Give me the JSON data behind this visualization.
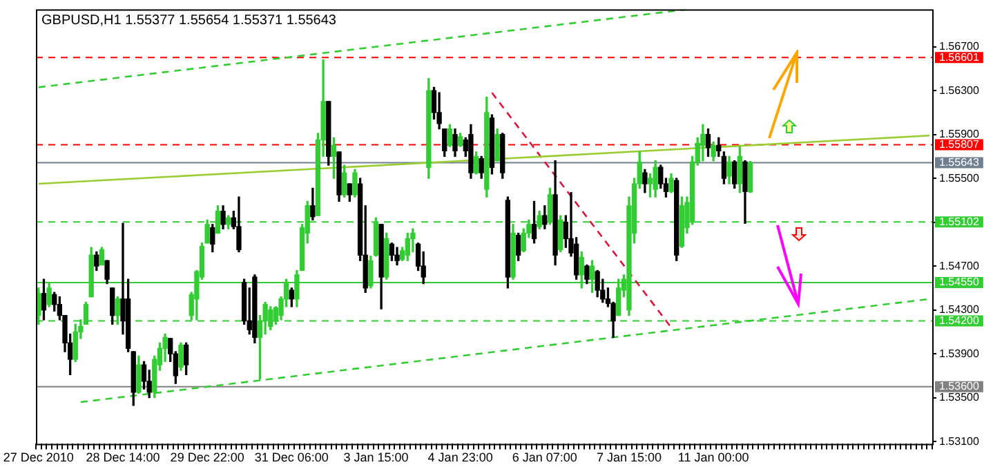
{
  "chart_data": {
    "type": "candlestick",
    "title": "GBPUSD,H1 1.55377 1.55654 1.55371 1.55643",
    "categories": [
      "27 Dec 2010",
      null,
      null,
      null,
      null,
      null,
      null,
      null,
      null,
      null,
      null,
      null,
      null,
      null,
      null,
      null,
      "28 Dec 14:00",
      null,
      null,
      null,
      null,
      null,
      null,
      null,
      null,
      null,
      null,
      null,
      null,
      null,
      null,
      null,
      "29 Dec 22:00",
      null,
      null,
      null,
      null,
      null,
      null,
      null,
      null,
      null,
      null,
      null,
      null,
      null,
      null,
      null,
      "31 Dec 06:00",
      null,
      null,
      null,
      null,
      null,
      null,
      null,
      null,
      null,
      null,
      null,
      null,
      null,
      null,
      null,
      "3 Jan 15:00",
      null,
      null,
      null,
      null,
      null,
      null,
      null,
      null,
      null,
      null,
      null,
      null,
      null,
      null,
      null,
      "4 Jan 23:00",
      null,
      null,
      null,
      null,
      null,
      null,
      null,
      null,
      null,
      null,
      null,
      null,
      null,
      null,
      null,
      "6 Jan 07:00",
      null,
      null,
      null,
      null,
      null,
      null,
      null,
      null,
      null,
      null,
      null,
      null,
      null,
      null,
      null,
      "7 Jan 15:00",
      null,
      null,
      null,
      null,
      null,
      null,
      null,
      null,
      null,
      null,
      null,
      null,
      null,
      null,
      null,
      "11 Jan 00:00",
      null,
      null,
      null,
      null,
      null,
      null,
      null,
      null,
      null,
      null,
      null,
      null,
      null,
      null,
      null,
      null,
      null,
      null,
      null,
      null,
      null,
      null,
      null,
      null,
      null,
      null,
      null,
      null,
      null,
      null,
      null,
      null,
      null,
      null,
      null,
      null,
      null,
      null,
      null,
      null,
      null
    ],
    "ohlc": [
      [
        1.5425,
        1.545,
        1.5417,
        1.5445
      ],
      [
        1.5445,
        1.5458,
        1.5421,
        1.543
      ],
      [
        1.5435,
        1.5454,
        1.5433,
        1.545
      ],
      [
        1.5444,
        1.5446,
        1.5429,
        1.5435
      ],
      [
        1.5435,
        1.5442,
        1.5421,
        1.5425
      ],
      [
        1.5425,
        1.5425,
        1.5392,
        1.54
      ],
      [
        1.54,
        1.5408,
        1.5371,
        1.5385
      ],
      [
        1.5385,
        1.5417,
        1.5383,
        1.541
      ],
      [
        1.541,
        1.5421,
        1.5404,
        1.5415
      ],
      [
        1.5417,
        1.5437,
        1.5417,
        1.5435
      ],
      [
        1.5442,
        1.5487,
        1.5442,
        1.548
      ],
      [
        1.548,
        1.5483,
        1.5466,
        1.547
      ],
      [
        1.5471,
        1.5487,
        1.5471,
        1.5485
      ],
      [
        1.5475,
        1.5475,
        1.5454,
        1.5458
      ],
      [
        1.545,
        1.545,
        1.5417,
        1.5425
      ],
      [
        1.5425,
        1.5442,
        1.5417,
        1.544
      ],
      [
        1.544,
        1.5509,
        1.5408,
        1.542
      ],
      [
        1.544,
        1.5458,
        1.5392,
        1.5395
      ],
      [
        1.5392,
        1.5392,
        1.5343,
        1.5355
      ],
      [
        1.5355,
        1.5388,
        1.5354,
        1.538
      ],
      [
        1.538,
        1.5383,
        1.5358,
        1.5365
      ],
      [
        1.5365,
        1.5375,
        1.535,
        1.5355
      ],
      [
        1.5355,
        1.5388,
        1.535,
        1.5385
      ],
      [
        1.538,
        1.54,
        1.5375,
        1.5395
      ],
      [
        1.5395,
        1.5408,
        1.5383,
        1.5405
      ],
      [
        1.5404,
        1.5404,
        1.5383,
        1.539
      ],
      [
        1.539,
        1.5392,
        1.5363,
        1.537
      ],
      [
        1.5378,
        1.54,
        1.5375,
        1.5398
      ],
      [
        1.5398,
        1.54,
        1.5371,
        1.538
      ],
      [
        1.5425,
        1.5446,
        1.5421,
        1.5444
      ],
      [
        1.544,
        1.5466,
        1.5421,
        1.5465
      ],
      [
        1.546,
        1.5491,
        1.5458,
        1.5488
      ],
      [
        1.5491,
        1.5512,
        1.5491,
        1.5508
      ],
      [
        1.5505,
        1.5508,
        1.5483,
        1.549
      ],
      [
        1.55,
        1.5525,
        1.55,
        1.552
      ],
      [
        1.552,
        1.5525,
        1.5504,
        1.5508
      ],
      [
        1.5508,
        1.5516,
        1.5504,
        1.5514
      ],
      [
        1.5514,
        1.552,
        1.5504,
        1.5506
      ],
      [
        1.5506,
        1.5533,
        1.5483,
        1.5485
      ],
      [
        1.5455,
        1.5458,
        1.5417,
        1.542
      ],
      [
        1.542,
        1.545,
        1.5408,
        1.5412
      ],
      [
        1.546,
        1.5462,
        1.54,
        1.5405
      ],
      [
        1.5405,
        1.5425,
        1.5367,
        1.542
      ],
      [
        1.542,
        1.5437,
        1.5408,
        1.5435
      ],
      [
        1.5415,
        1.5433,
        1.5412,
        1.543
      ],
      [
        1.542,
        1.5433,
        1.5417,
        1.5432
      ],
      [
        1.5425,
        1.5442,
        1.5421,
        1.544
      ],
      [
        1.544,
        1.5458,
        1.5433,
        1.5455
      ],
      [
        1.5448,
        1.545,
        1.5433,
        1.544
      ],
      [
        1.544,
        1.5466,
        1.5433,
        1.5462
      ],
      [
        1.5466,
        1.5508,
        1.5466,
        1.5505
      ],
      [
        1.55,
        1.5529,
        1.5491,
        1.5525
      ],
      [
        1.5525,
        1.5541,
        1.5512,
        1.5515
      ],
      [
        1.5516,
        1.5591,
        1.5516,
        1.5585
      ],
      [
        1.5585,
        1.5658,
        1.557,
        1.562
      ],
      [
        1.562,
        1.562,
        1.5562,
        1.557
      ],
      [
        1.557,
        1.5587,
        1.555,
        1.558
      ],
      [
        1.5574,
        1.5574,
        1.5529,
        1.5535
      ],
      [
        1.5535,
        1.5562,
        1.5533,
        1.5555
      ],
      [
        1.5545,
        1.5545,
        1.5529,
        1.5535
      ],
      [
        1.5535,
        1.5558,
        1.5533,
        1.5555
      ],
      [
        1.5545,
        1.555,
        1.5475,
        1.548
      ],
      [
        1.548,
        1.5525,
        1.5446,
        1.545
      ],
      [
        1.5452,
        1.5479,
        1.545,
        1.5475
      ],
      [
        1.548,
        1.5514,
        1.5479,
        1.551
      ],
      [
        1.5508,
        1.5508,
        1.5431,
        1.546
      ],
      [
        1.546,
        1.55,
        1.5458,
        1.5495
      ],
      [
        1.549,
        1.5491,
        1.5475,
        1.548
      ],
      [
        1.548,
        1.5487,
        1.5471,
        1.5475
      ],
      [
        1.5476,
        1.5487,
        1.5475,
        1.5484
      ],
      [
        1.548,
        1.55,
        1.5475,
        1.5495
      ],
      [
        1.5495,
        1.5504,
        1.5483,
        1.55
      ],
      [
        1.549,
        1.5491,
        1.5466,
        1.547
      ],
      [
        1.547,
        1.5483,
        1.5454,
        1.546
      ],
      [
        1.556,
        1.5641,
        1.555,
        1.563
      ],
      [
        1.563,
        1.5633,
        1.5604,
        1.561
      ],
      [
        1.561,
        1.5628,
        1.5595,
        1.56
      ],
      [
        1.5595,
        1.5595,
        1.557,
        1.5575
      ],
      [
        1.558,
        1.5599,
        1.5579,
        1.5595
      ],
      [
        1.559,
        1.5595,
        1.557,
        1.5575
      ],
      [
        1.558,
        1.5591,
        1.5579,
        1.5588
      ],
      [
        1.5585,
        1.5587,
        1.557,
        1.5575
      ],
      [
        1.559,
        1.5599,
        1.555,
        1.5555
      ],
      [
        1.5555,
        1.5574,
        1.5554,
        1.557
      ],
      [
        1.5568,
        1.557,
        1.555,
        1.5555
      ],
      [
        1.554,
        1.5624,
        1.5533,
        1.561
      ],
      [
        1.5605,
        1.5608,
        1.5554,
        1.556
      ],
      [
        1.5566,
        1.5595,
        1.5566,
        1.559
      ],
      [
        1.559,
        1.5591,
        1.555,
        1.5555
      ],
      [
        1.553,
        1.5533,
        1.545,
        1.546
      ],
      [
        1.546,
        1.5508,
        1.5458,
        1.55
      ],
      [
        1.5498,
        1.55,
        1.5475,
        1.548
      ],
      [
        1.5484,
        1.5504,
        1.5483,
        1.55
      ],
      [
        1.55,
        1.5512,
        1.5496,
        1.5508
      ],
      [
        1.5508,
        1.5529,
        1.5491,
        1.5495
      ],
      [
        1.5506,
        1.552,
        1.5504,
        1.5516
      ],
      [
        1.5516,
        1.5525,
        1.5504,
        1.5508
      ],
      [
        1.551,
        1.5541,
        1.5508,
        1.5535
      ],
      [
        1.5535,
        1.5566,
        1.5471,
        1.548
      ],
      [
        1.5485,
        1.5516,
        1.5483,
        1.5512
      ],
      [
        1.551,
        1.5516,
        1.5487,
        1.5495
      ],
      [
        1.5495,
        1.5537,
        1.5479,
        1.5482
      ],
      [
        1.549,
        1.5496,
        1.5458,
        1.5462
      ],
      [
        1.5462,
        1.5483,
        1.545,
        1.5478
      ],
      [
        1.547,
        1.5471,
        1.5454,
        1.5458
      ],
      [
        1.5458,
        1.5475,
        1.5446,
        1.547
      ],
      [
        1.5465,
        1.5466,
        1.5442,
        1.5448
      ],
      [
        1.5448,
        1.5458,
        1.5437,
        1.544
      ],
      [
        1.544,
        1.545,
        1.5433,
        1.5436
      ],
      [
        1.5436,
        1.5437,
        1.5405,
        1.542
      ],
      [
        1.5425,
        1.5458,
        1.5425,
        1.545
      ],
      [
        1.5448,
        1.5462,
        1.5442,
        1.5458
      ],
      [
        1.543,
        1.5533,
        1.5425,
        1.5525
      ],
      [
        1.55,
        1.555,
        1.5491,
        1.5545
      ],
      [
        1.5545,
        1.5574,
        1.5541,
        1.5565
      ],
      [
        1.5555,
        1.5558,
        1.5537,
        1.5545
      ],
      [
        1.5545,
        1.5554,
        1.5533,
        1.555
      ],
      [
        1.554,
        1.5566,
        1.5533,
        1.556
      ],
      [
        1.556,
        1.5562,
        1.5541,
        1.5545
      ],
      [
        1.5545,
        1.555,
        1.5533,
        1.5538
      ],
      [
        1.5538,
        1.5554,
        1.5537,
        1.555
      ],
      [
        1.5548,
        1.555,
        1.5475,
        1.548
      ],
      [
        1.5488,
        1.5533,
        1.5487,
        1.5525
      ],
      [
        1.5505,
        1.5533,
        1.55,
        1.5528
      ],
      [
        1.551,
        1.557,
        1.5508,
        1.5565
      ],
      [
        1.5565,
        1.5587,
        1.5562,
        1.5582
      ],
      [
        1.558,
        1.5599,
        1.5566,
        1.559
      ],
      [
        1.559,
        1.5595,
        1.557,
        1.5578
      ],
      [
        1.557,
        1.5583,
        1.5566,
        1.558
      ],
      [
        1.558,
        1.5587,
        1.557,
        1.5575
      ],
      [
        1.557,
        1.5574,
        1.5545,
        1.555
      ],
      [
        1.5552,
        1.557,
        1.5545,
        1.5565
      ],
      [
        1.5565,
        1.5566,
        1.5541,
        1.5545
      ],
      [
        1.5545,
        1.5579,
        1.5537,
        1.557
      ],
      [
        1.5565,
        1.5566,
        1.5509,
        1.5538
      ],
      [
        1.55377,
        1.55654,
        1.55371,
        1.55643
      ],
      null,
      null,
      null,
      null,
      null,
      null,
      null,
      null,
      null,
      null,
      null,
      null,
      null,
      null,
      null,
      null,
      null,
      null,
      null,
      null,
      null,
      null,
      null,
      null,
      null,
      null,
      null,
      null,
      null,
      null,
      null,
      null,
      null,
      null
    ],
    "ylim": [
      1.5308,
      1.5704
    ],
    "yticks": [
      {
        "value": 1.567,
        "label": "1.56700"
      },
      {
        "value": 1.563,
        "label": "1.56300"
      },
      {
        "value": 1.559,
        "label": "1.55900"
      },
      {
        "value": 1.555,
        "label": "1.55500"
      },
      {
        "value": 1.551,
        "label": null
      },
      {
        "value": 1.547,
        "label": "1.54700"
      },
      {
        "value": 1.543,
        "label": "1.54300"
      },
      {
        "value": 1.539,
        "label": "1.53900"
      },
      {
        "value": 1.535,
        "label": "1.53500"
      },
      {
        "value": 1.531,
        "label": "1.53100"
      }
    ],
    "ref_lines": [
      {
        "axis": "y",
        "value": 1.56601,
        "label": "1.56601",
        "color": "#ff0000",
        "line_style": "dashed"
      },
      {
        "axis": "y",
        "value": 1.55807,
        "label": "1.55807",
        "color": "#ff0000",
        "line_style": "dashed"
      },
      {
        "axis": "y",
        "value": 1.55643,
        "label": "1.55643",
        "color": "#708090",
        "line_style": "solid"
      },
      {
        "axis": "y",
        "value": 1.55102,
        "label": "1.55102",
        "color": "#32cd32",
        "line_style": "dashed"
      },
      {
        "axis": "y",
        "value": 1.5455,
        "label": "1.54550",
        "color": "#32cd32",
        "line_style": "solid"
      },
      {
        "axis": "y",
        "value": 1.542,
        "label": "1.54200",
        "color": "#32cd32",
        "line_style": "dashed"
      },
      {
        "axis": "y",
        "value": 1.536,
        "label": "1.53600",
        "color": "#808080",
        "line_style": "solid"
      }
    ],
    "series": [
      {
        "type": "line",
        "color": "#32cd32",
        "line_style": "dashed",
        "values": [
          1.5633,
          null,
          null,
          null,
          null,
          null,
          null,
          null,
          null,
          null,
          null,
          null,
          null,
          null,
          null,
          null,
          null,
          null,
          null,
          null,
          null,
          null,
          null,
          null,
          null,
          null,
          null,
          null,
          null,
          null,
          null,
          null,
          null,
          null,
          null,
          null,
          null,
          null,
          null,
          null,
          null,
          null,
          null,
          null,
          null,
          null,
          null,
          null,
          null,
          null,
          null,
          null,
          null,
          null,
          null,
          null,
          null,
          null,
          null,
          null,
          null,
          null,
          null,
          null,
          null,
          null,
          null,
          null,
          null,
          null,
          null,
          null,
          null,
          null,
          null,
          null,
          null,
          null,
          null,
          null,
          null,
          null,
          null,
          null,
          null,
          null,
          null,
          null,
          null,
          null,
          null,
          null,
          null,
          null,
          null,
          null,
          null,
          null,
          null,
          null,
          null,
          null,
          null,
          null,
          null,
          null,
          null,
          null,
          null,
          null,
          null,
          null,
          null,
          null,
          null,
          null,
          null,
          null,
          null,
          null,
          null,
          null,
          null,
          1.5704,
          null,
          null,
          null,
          null,
          null,
          null,
          null,
          null,
          null,
          null,
          null,
          null,
          null,
          null,
          null,
          null,
          null,
          null,
          null,
          null,
          null,
          null,
          null,
          null,
          null,
          null,
          null,
          null,
          null,
          null,
          null,
          null,
          null,
          null,
          null,
          null,
          null,
          null,
          null,
          null,
          null,
          null,
          null,
          null,
          null,
          null
        ]
      },
      {
        "type": "line",
        "color": "#32cd32",
        "line_style": "dashed",
        "values": [
          null,
          null,
          null,
          null,
          null,
          null,
          null,
          null,
          1.5346,
          null,
          null,
          null,
          null,
          null,
          null,
          null,
          null,
          null,
          null,
          null,
          null,
          null,
          null,
          null,
          null,
          null,
          null,
          null,
          null,
          null,
          null,
          null,
          null,
          null,
          null,
          null,
          null,
          null,
          null,
          null,
          null,
          null,
          null,
          null,
          null,
          null,
          null,
          null,
          null,
          null,
          null,
          null,
          null,
          null,
          null,
          null,
          null,
          null,
          null,
          null,
          null,
          null,
          null,
          null,
          null,
          null,
          null,
          null,
          null,
          null,
          null,
          null,
          null,
          null,
          null,
          null,
          null,
          null,
          null,
          null,
          null,
          null,
          null,
          null,
          null,
          null,
          null,
          null,
          null,
          null,
          null,
          null,
          null,
          null,
          null,
          null,
          null,
          null,
          null,
          null,
          null,
          null,
          null,
          null,
          null,
          null,
          null,
          null,
          null,
          null,
          null,
          null,
          null,
          null,
          null,
          null,
          null,
          null,
          null,
          null,
          null,
          null,
          null,
          null,
          null,
          null,
          null,
          null,
          null,
          null,
          null,
          null,
          null,
          null,
          null,
          null,
          null,
          null,
          null,
          null,
          null,
          null,
          null,
          null,
          null,
          null,
          null,
          null,
          null,
          null,
          null,
          null,
          null,
          null,
          null,
          null,
          null,
          null,
          null,
          null,
          null,
          null,
          null,
          null,
          null,
          null,
          null,
          null,
          null,
          1.544
        ]
      },
      {
        "type": "line",
        "color": "#9acd32",
        "line_style": "solid",
        "values": [
          1.5545,
          null,
          null,
          null,
          null,
          null,
          null,
          null,
          null,
          null,
          null,
          null,
          null,
          null,
          null,
          null,
          null,
          null,
          null,
          null,
          null,
          null,
          null,
          null,
          null,
          null,
          null,
          null,
          null,
          null,
          null,
          null,
          null,
          null,
          null,
          null,
          null,
          null,
          null,
          null,
          null,
          null,
          null,
          null,
          null,
          null,
          null,
          null,
          null,
          null,
          null,
          null,
          null,
          null,
          null,
          null,
          null,
          null,
          null,
          null,
          null,
          null,
          null,
          null,
          null,
          null,
          null,
          null,
          null,
          null,
          null,
          null,
          null,
          null,
          null,
          null,
          null,
          null,
          null,
          null,
          null,
          null,
          null,
          null,
          null,
          null,
          null,
          null,
          null,
          null,
          null,
          null,
          null,
          null,
          null,
          null,
          null,
          null,
          null,
          null,
          null,
          null,
          null,
          null,
          null,
          null,
          null,
          null,
          null,
          null,
          null,
          null,
          null,
          null,
          null,
          null,
          null,
          null,
          null,
          null,
          null,
          null,
          null,
          null,
          null,
          null,
          null,
          null,
          null,
          null,
          null,
          null,
          null,
          null,
          null,
          null,
          null,
          null,
          null,
          null,
          null,
          null,
          null,
          null,
          null,
          null,
          null,
          null,
          null,
          null,
          null,
          null,
          null,
          null,
          null,
          null,
          null,
          null,
          null,
          null,
          null,
          null,
          null,
          null,
          null,
          null,
          null,
          null,
          null,
          1.5589
        ]
      },
      {
        "type": "line",
        "color": "#dc143c",
        "line_style": "dashed",
        "values": [
          null,
          null,
          null,
          null,
          null,
          null,
          null,
          null,
          null,
          null,
          null,
          null,
          null,
          null,
          null,
          null,
          null,
          null,
          null,
          null,
          null,
          null,
          null,
          null,
          null,
          null,
          null,
          null,
          null,
          null,
          null,
          null,
          null,
          null,
          null,
          null,
          null,
          null,
          null,
          null,
          null,
          null,
          null,
          null,
          null,
          null,
          null,
          null,
          null,
          null,
          null,
          null,
          null,
          null,
          null,
          null,
          null,
          null,
          null,
          null,
          null,
          null,
          null,
          null,
          null,
          null,
          null,
          null,
          null,
          null,
          null,
          null,
          null,
          null,
          null,
          null,
          null,
          null,
          null,
          null,
          null,
          null,
          null,
          null,
          null,
          null,
          1.5628,
          null,
          null,
          null,
          null,
          null,
          null,
          null,
          null,
          null,
          null,
          null,
          null,
          null,
          null,
          null,
          null,
          null,
          null,
          null,
          null,
          null,
          null,
          null,
          null,
          null,
          null,
          null,
          null,
          null,
          null,
          null,
          null,
          null,
          1.5414,
          null,
          null,
          null,
          null,
          null,
          null,
          null,
          null,
          null,
          null,
          null,
          null,
          null,
          null,
          null,
          null,
          null,
          null,
          null,
          null,
          null,
          null,
          null,
          null,
          null,
          null,
          null,
          null,
          null,
          null,
          null,
          null,
          null,
          null,
          null,
          null,
          null,
          null,
          null,
          null,
          null,
          null,
          null,
          null,
          null,
          null,
          null,
          null,
          null
        ]
      }
    ],
    "grid": false,
    "legend": false
  }
}
